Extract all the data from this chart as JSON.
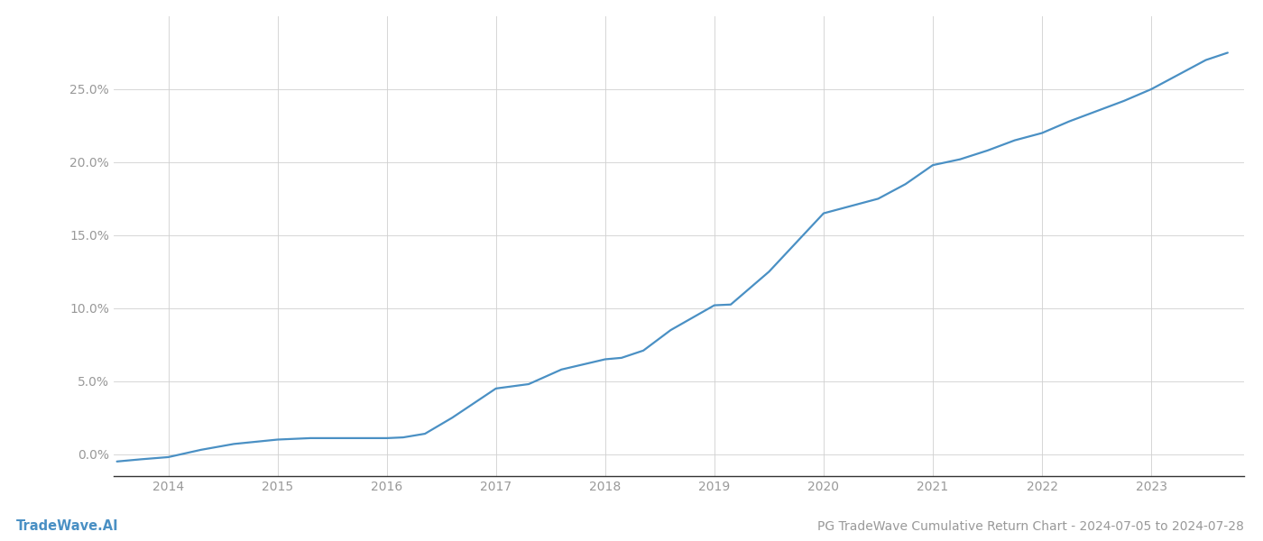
{
  "title": "PG TradeWave Cumulative Return Chart - 2024-07-05 to 2024-07-28",
  "watermark": "TradeWave.AI",
  "line_color": "#4a90c4",
  "background_color": "#ffffff",
  "grid_color": "#d0d0d0",
  "x_years": [
    2014,
    2015,
    2016,
    2017,
    2018,
    2019,
    2020,
    2021,
    2022,
    2023
  ],
  "x_data": [
    2013.53,
    2013.75,
    2014.0,
    2014.3,
    2014.6,
    2015.0,
    2015.3,
    2015.6,
    2016.0,
    2016.15,
    2016.35,
    2016.6,
    2017.0,
    2017.3,
    2017.6,
    2018.0,
    2018.15,
    2018.35,
    2018.6,
    2019.0,
    2019.15,
    2019.5,
    2019.75,
    2020.0,
    2020.25,
    2020.5,
    2020.75,
    2021.0,
    2021.25,
    2021.5,
    2021.75,
    2022.0,
    2022.25,
    2022.5,
    2022.75,
    2023.0,
    2023.25,
    2023.5,
    2023.7
  ],
  "y_data": [
    -0.5,
    -0.35,
    -0.2,
    0.3,
    0.7,
    1.0,
    1.1,
    1.1,
    1.1,
    1.15,
    1.4,
    2.5,
    4.5,
    4.8,
    5.8,
    6.5,
    6.6,
    7.1,
    8.5,
    10.2,
    10.25,
    12.5,
    14.5,
    16.5,
    17.0,
    17.5,
    18.5,
    19.8,
    20.2,
    20.8,
    21.5,
    22.0,
    22.8,
    23.5,
    24.2,
    25.0,
    26.0,
    27.0,
    27.5
  ],
  "ylim": [
    -1.5,
    30
  ],
  "xlim": [
    2013.5,
    2023.85
  ],
  "yticks": [
    0,
    5,
    10,
    15,
    20,
    25
  ],
  "ytick_labels": [
    "0.0%",
    "5.0%",
    "10.0%",
    "15.0%",
    "20.0%",
    "25.0%"
  ],
  "title_fontsize": 10,
  "watermark_fontsize": 10.5,
  "tick_color": "#999999",
  "axis_color": "#333333",
  "line_width": 1.6
}
